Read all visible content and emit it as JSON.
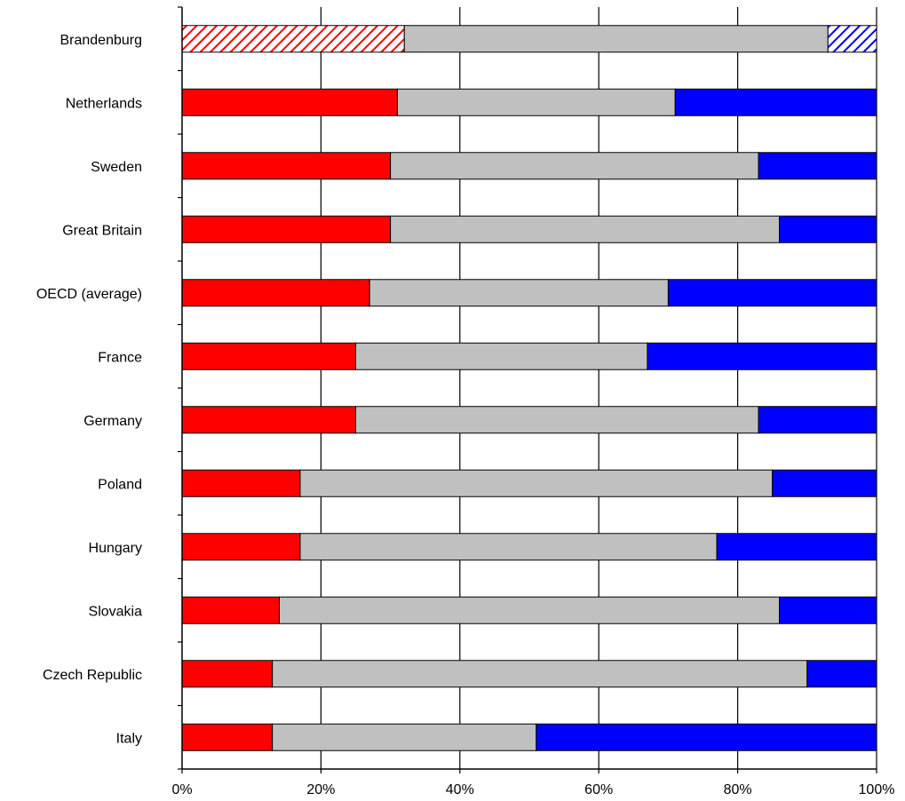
{
  "chart_data": {
    "type": "bar",
    "orientation": "horizontal",
    "stacked": true,
    "normalized": true,
    "title": "",
    "xlabel": "",
    "ylabel": "",
    "xlim": [
      0,
      100
    ],
    "x_ticks": [
      "0%",
      "20%",
      "40%",
      "60%",
      "80%",
      "100%"
    ],
    "grid": "vertical",
    "legend": "none",
    "categories": [
      "Brandenburg",
      "Netherlands",
      "Sweden",
      "Great Britain",
      "OECD (average)",
      "France",
      "Germany",
      "Poland",
      "Hungary",
      "Slovakia",
      "Czech Republic",
      "Italy"
    ],
    "hatched_categories": [
      "Brandenburg"
    ],
    "series": [
      {
        "color": "#ff0000",
        "values": [
          32,
          31,
          30,
          30,
          27,
          25,
          25,
          17,
          17,
          14,
          13,
          13
        ]
      },
      {
        "color": "#c0c0c0",
        "values": [
          61,
          40,
          53,
          56,
          43,
          42,
          58,
          68,
          60,
          72,
          77,
          38
        ]
      },
      {
        "color": "#0000ff",
        "values": [
          7,
          29,
          17,
          14,
          30,
          33,
          17,
          15,
          23,
          14,
          10,
          49
        ]
      }
    ]
  }
}
